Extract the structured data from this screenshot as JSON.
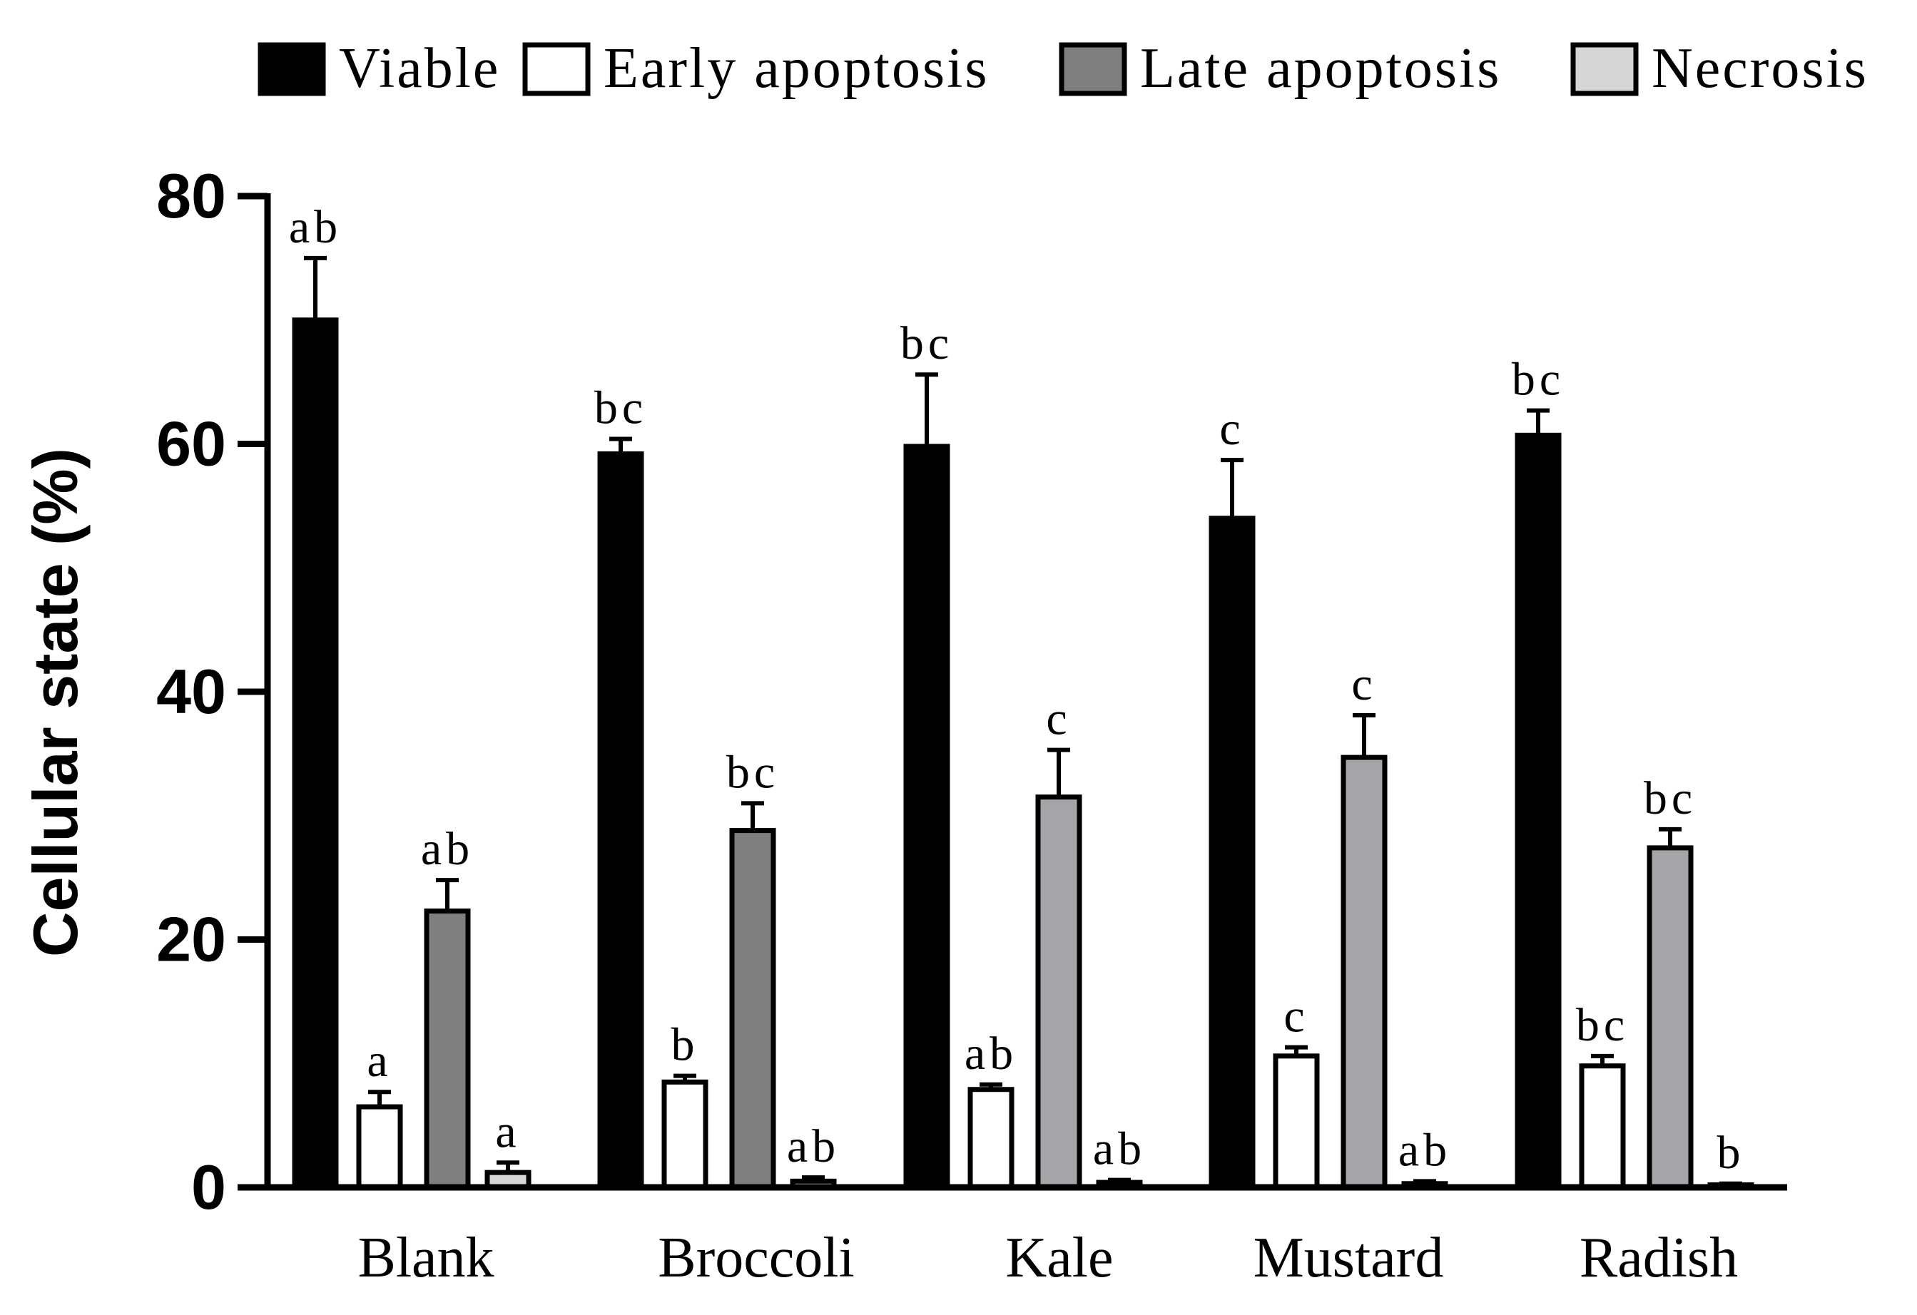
{
  "chart_data": {
    "type": "bar",
    "title": "",
    "xlabel": "",
    "ylabel": "Cellular state (%)",
    "ylim": [
      0,
      80
    ],
    "yticks": [
      0,
      20,
      40,
      60,
      80
    ],
    "categories": [
      "Blank",
      "Broccoli",
      "Kale",
      "Mustard",
      "Radish"
    ],
    "legend_position": "top",
    "series": [
      {
        "name": "Viable",
        "fill": "#000000",
        "values": [
          70,
          59.2,
          59.8,
          54,
          60.7
        ],
        "errors": [
          5,
          1.2,
          5.8,
          4.7,
          2
        ],
        "letters": [
          "ab",
          "bc",
          "bc",
          "c",
          "bc"
        ]
      },
      {
        "name": "Early apoptosis",
        "fill": "#ffffff",
        "values": [
          6.5,
          8.5,
          7.9,
          10.6,
          9.8
        ],
        "errors": [
          1.2,
          0.5,
          0.4,
          0.7,
          0.8
        ],
        "letters": [
          "a",
          "b",
          "ab",
          "c",
          "bc"
        ]
      },
      {
        "name": "Late apoptosis",
        "fill": "#7f7f7f",
        "fills": [
          "#7f7f7f",
          "#7f7f7f",
          "#a5a5a7",
          "#a5a5a7",
          "#a5a5a7"
        ],
        "values": [
          22.3,
          28.8,
          31.5,
          34.7,
          27.4
        ],
        "errors": [
          2.5,
          2.2,
          3.8,
          3.4,
          1.5
        ],
        "letters": [
          "ab",
          "bc",
          "c",
          "c",
          "bc"
        ]
      },
      {
        "name": "Necrosis",
        "fill": "#d6d6d6",
        "values": [
          1.2,
          0.5,
          0.4,
          0.3,
          0.2
        ],
        "errors": [
          0.8,
          0.3,
          0.2,
          0.2,
          0.1
        ],
        "letters": [
          "a",
          "ab",
          "ab",
          "ab",
          "b"
        ]
      }
    ]
  }
}
